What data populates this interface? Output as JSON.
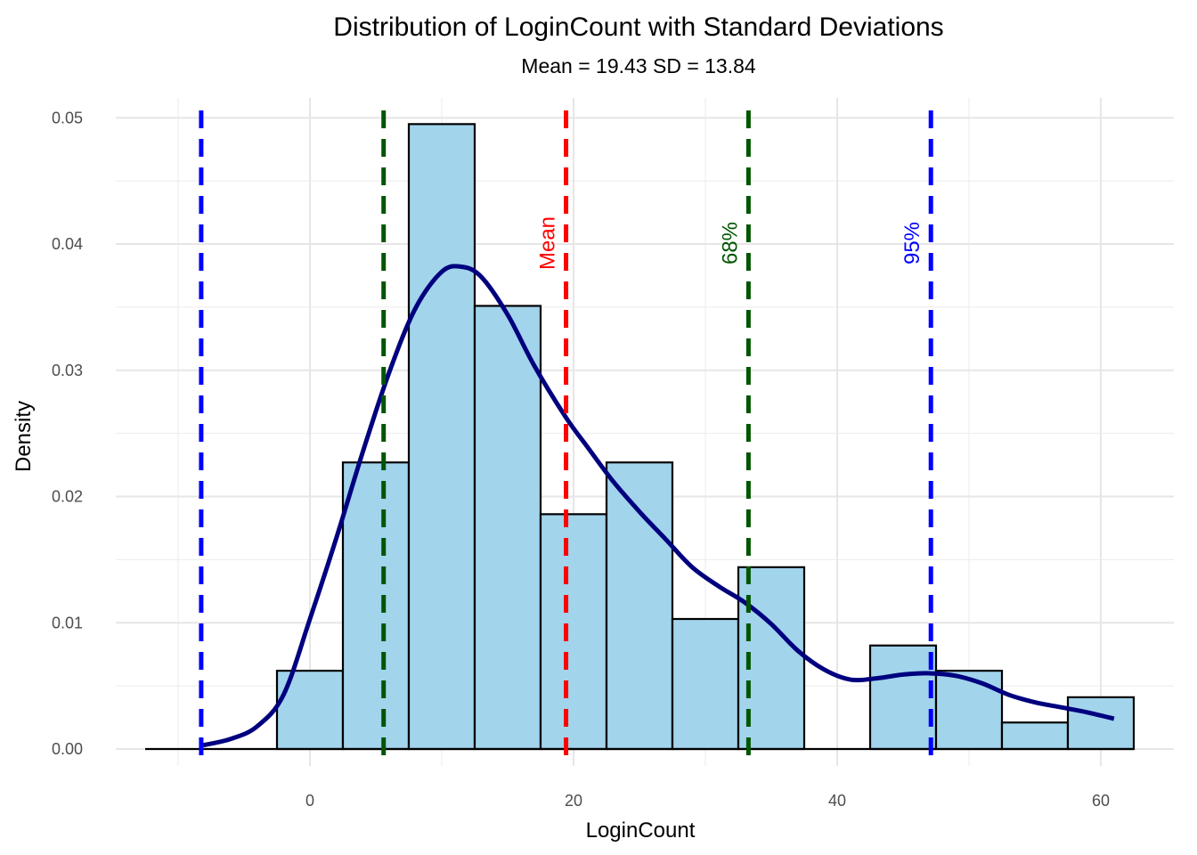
{
  "chart_data": {
    "type": "bar",
    "title": "Distribution of LoginCount with Standard Deviations",
    "subtitle": "Mean = 19.43 SD = 13.84",
    "xlabel": "LoginCount",
    "ylabel": "Density",
    "xlim": [
      -12.5,
      62.5
    ],
    "ylim": [
      0,
      0.05
    ],
    "x_ticks": [
      0,
      20,
      40,
      60
    ],
    "y_ticks": [
      0.0,
      0.01,
      0.02,
      0.03,
      0.04,
      0.05
    ],
    "y_tick_labels": [
      "0.00",
      "0.01",
      "0.02",
      "0.03",
      "0.04",
      "0.05"
    ],
    "grid": true,
    "bin_width": 5,
    "histogram": {
      "bin_start": [
        -12.5,
        -7.5,
        -2.5,
        2.5,
        7.5,
        12.5,
        17.5,
        22.5,
        27.5,
        32.5,
        37.5,
        42.5,
        47.5,
        52.5,
        57.5
      ],
      "bin_end": [
        -7.5,
        -2.5,
        2.5,
        7.5,
        12.5,
        17.5,
        22.5,
        27.5,
        32.5,
        37.5,
        42.5,
        47.5,
        52.5,
        57.5,
        62.5
      ],
      "density": [
        0,
        0,
        0.0062,
        0.0227,
        0.0495,
        0.0351,
        0.0186,
        0.0227,
        0.0103,
        0.0144,
        0,
        0.0082,
        0.0062,
        0.0021,
        0.0041
      ],
      "fill": "#a2d4ec",
      "edge": "#000000"
    },
    "density_curve": {
      "color": "#00007f",
      "x": [
        -8.1,
        -6,
        -4,
        -2,
        0,
        2,
        4,
        6,
        8,
        10,
        11.5,
        13,
        15,
        17,
        19.4,
        21,
        23,
        25,
        27,
        29,
        31,
        33,
        35,
        37,
        39,
        41,
        43,
        45,
        47,
        49,
        51,
        53,
        55,
        57,
        59,
        61
      ],
      "y": [
        0.0003,
        0.0008,
        0.0018,
        0.0043,
        0.0103,
        0.0167,
        0.0235,
        0.0298,
        0.0349,
        0.0378,
        0.0382,
        0.0374,
        0.0344,
        0.0304,
        0.0263,
        0.024,
        0.0212,
        0.0188,
        0.0166,
        0.0144,
        0.0129,
        0.0116,
        0.0099,
        0.0078,
        0.0063,
        0.0055,
        0.0056,
        0.0059,
        0.006,
        0.0058,
        0.0052,
        0.0043,
        0.0037,
        0.0033,
        0.0029,
        0.0024
      ]
    },
    "reference_lines": [
      {
        "x": -8.25,
        "color": "#0000ff",
        "label": ""
      },
      {
        "x": 5.59,
        "color": "#005500",
        "label": ""
      },
      {
        "x": 19.43,
        "color": "#ff0000",
        "label": "Mean"
      },
      {
        "x": 33.27,
        "color": "#005500",
        "label": "68%"
      },
      {
        "x": 47.11,
        "color": "#0000ff",
        "label": "95%"
      }
    ]
  }
}
